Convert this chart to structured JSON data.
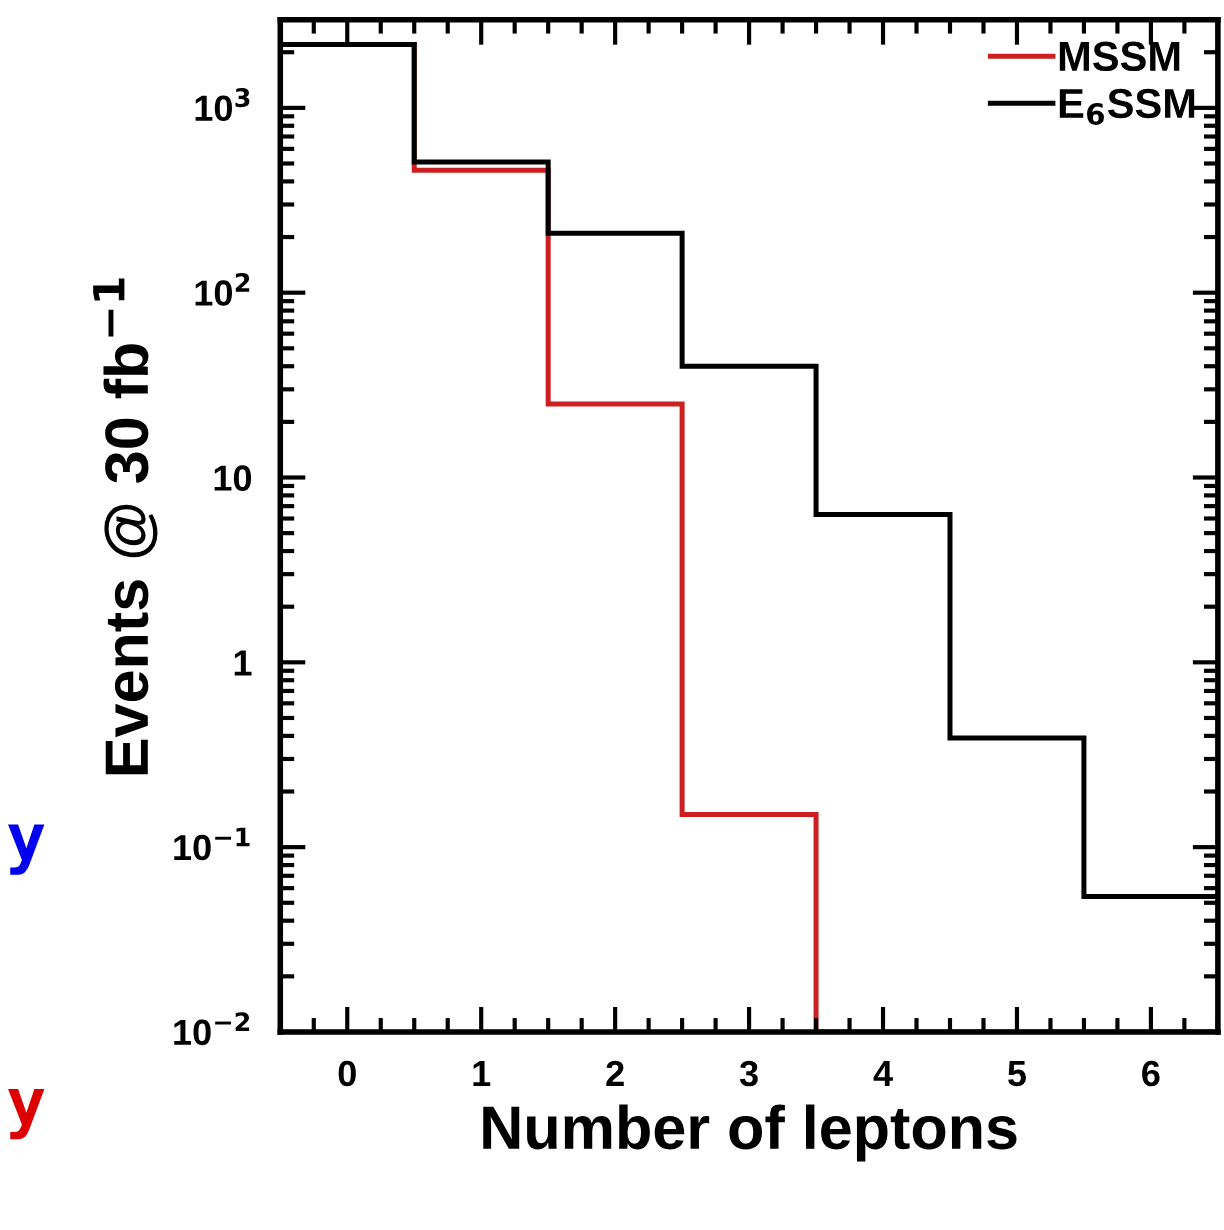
{
  "chart_data": {
    "type": "histogram",
    "xlabel": "Number of leptons",
    "ylabel": "Events @ 30 fb$^{−1}$",
    "bins": [
      -0.5,
      0.5,
      1.5,
      2.5,
      3.5,
      4.5,
      5.5,
      6.5
    ],
    "series": [
      {
        "name": "MSSM",
        "color": "#cc2020",
        "values": [
          2200,
          460,
          25,
          0.15,
          0.01,
          0.01,
          0.01
        ]
      },
      {
        "name": "E$_{6}$SSM",
        "color": "#000000",
        "values": [
          2200,
          510,
          210,
          40,
          6.3,
          0.39,
          0.054
        ]
      }
    ],
    "log": true,
    "ylim": [
      0.01,
      3000
    ],
    "yticks": [
      {
        "value": 0.01,
        "label": "10$^{−2}$"
      },
      {
        "value": 0.1,
        "label": "10$^{−1}$"
      },
      1,
      10,
      {
        "value": 100,
        "label": "10$^{2}$"
      },
      {
        "value": 1000,
        "label": "10$^{3}$"
      }
    ],
    "xlim": [
      -0.5,
      6.5
    ],
    "xticks": [
      0,
      1,
      2,
      3,
      4,
      5,
      6
    ],
    "legend": "top right",
    "grid": false,
    "annotations": [
      "y",
      "y"
    ]
  }
}
